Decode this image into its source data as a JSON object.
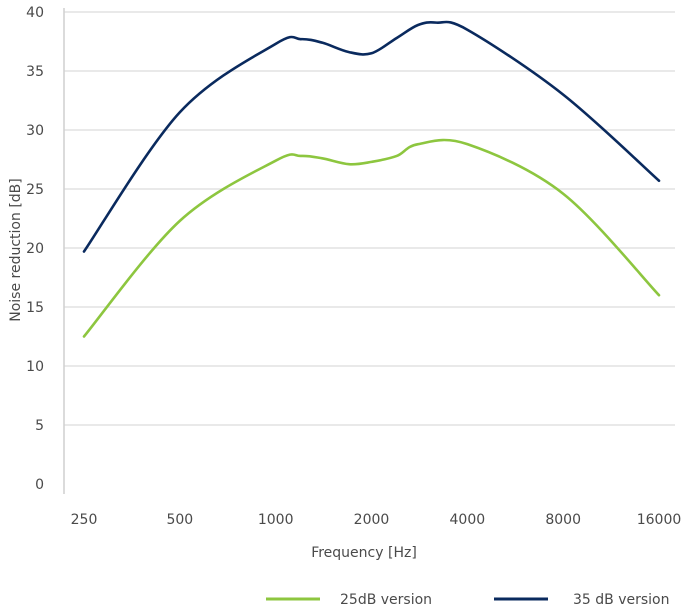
{
  "chart_data": {
    "type": "line",
    "xlabel": "Frequency [Hz]",
    "ylabel": "Noise reduction [dB]",
    "x": [
      250,
      500,
      1000,
      2000,
      4000,
      8000,
      16000
    ],
    "x_tick_labels": [
      "250",
      "500",
      "1000",
      "2000",
      "4000",
      "8000",
      "16000"
    ],
    "ylim": [
      0,
      40
    ],
    "y_ticks": [
      0,
      5,
      10,
      15,
      20,
      25,
      30,
      35,
      40
    ],
    "grid": "horizontal",
    "legend_position": "bottom-right",
    "series": [
      {
        "name": "25dB version",
        "color": "#8dc63f",
        "x": [
          250,
          500,
          1000,
          1200,
          1400,
          1700,
          2000,
          2400,
          2800,
          4000,
          8000,
          16000
        ],
        "values": [
          12.5,
          22.3,
          27.4,
          27.8,
          27.6,
          27.1,
          27.3,
          27.8,
          28.8,
          28.8,
          24.6,
          16.0
        ]
      },
      {
        "name": "35 dB version",
        "color": "#0a2a5e",
        "x": [
          250,
          500,
          1000,
          1200,
          1400,
          1700,
          2000,
          2400,
          2800,
          3200,
          4000,
          8000,
          16000
        ],
        "values": [
          19.7,
          31.5,
          37.3,
          37.7,
          37.4,
          36.6,
          36.5,
          37.8,
          38.9,
          39.1,
          38.5,
          33.0,
          25.7
        ]
      }
    ]
  }
}
